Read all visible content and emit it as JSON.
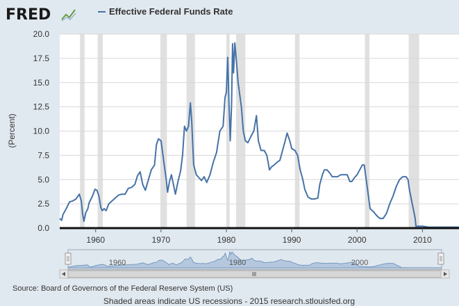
{
  "header": {
    "logo": "FRED",
    "logo_icon": "line-chart-icon"
  },
  "legend": {
    "label": "Effective Federal Funds Rate",
    "color": "#4572a7"
  },
  "navigator": {
    "labels": [
      "1960",
      "1980",
      "2000"
    ],
    "scroll_icon": "scroll-grip-icon",
    "handle_icon": "drag-handle-icon"
  },
  "footer": {
    "source": "Source: Board of Governors of the Federal Reserve System (US)",
    "note": "Shaded areas indicate US recessions - 2015 research.stlouisfed.org"
  },
  "colors": {
    "background": "#e1e9f0",
    "plot_background": "#ffffff",
    "recession": "#e0e0e0",
    "grid": "#d8d8d8",
    "line": "#4572a7"
  },
  "chart_data": {
    "type": "line",
    "title": "Effective Federal Funds Rate",
    "xlabel": "",
    "ylabel": "(Percent)",
    "xlim": [
      1954.5,
      2015.6
    ],
    "ylim": [
      0,
      20
    ],
    "yticks": [
      "0.0",
      "2.5",
      "5.0",
      "7.5",
      "10.0",
      "12.5",
      "15.0",
      "17.5",
      "20.0"
    ],
    "ytick_values": [
      0,
      2.5,
      5,
      7.5,
      10,
      12.5,
      15,
      17.5,
      20
    ],
    "xticks": [
      "1960",
      "1970",
      "1980",
      "1990",
      "2000",
      "2010"
    ],
    "xtick_values": [
      1960,
      1970,
      1980,
      1990,
      2000,
      2010
    ],
    "grid": true,
    "recessions": [
      [
        1957.6,
        1958.3
      ],
      [
        1960.3,
        1961.1
      ],
      [
        1969.9,
        1970.9
      ],
      [
        1973.9,
        1975.2
      ],
      [
        1980.0,
        1980.5
      ],
      [
        1981.5,
        1982.9
      ],
      [
        1990.5,
        1991.2
      ],
      [
        2001.2,
        2001.9
      ],
      [
        2007.9,
        2009.5
      ]
    ],
    "series": [
      {
        "name": "Effective Federal Funds Rate",
        "x": [
          1954.5,
          1954.8,
          1955.0,
          1955.5,
          1956.0,
          1956.5,
          1957.0,
          1957.5,
          1957.8,
          1958.0,
          1958.2,
          1958.5,
          1958.8,
          1959.0,
          1959.5,
          1959.9,
          1960.2,
          1960.5,
          1960.8,
          1961.0,
          1961.3,
          1961.6,
          1962.0,
          1962.5,
          1963.0,
          1963.5,
          1964.0,
          1964.5,
          1965.0,
          1965.5,
          1966.0,
          1966.4,
          1966.8,
          1967.2,
          1967.6,
          1968.0,
          1968.5,
          1969.0,
          1969.3,
          1969.6,
          1970.0,
          1970.4,
          1970.8,
          1971.0,
          1971.3,
          1971.6,
          1971.9,
          1972.2,
          1972.6,
          1973.0,
          1973.3,
          1973.6,
          1973.9,
          1974.2,
          1974.5,
          1974.7,
          1975.0,
          1975.4,
          1975.8,
          1976.2,
          1976.6,
          1977.0,
          1977.5,
          1978.0,
          1978.5,
          1979.0,
          1979.5,
          1979.8,
          1980.0,
          1980.2,
          1980.4,
          1980.6,
          1980.8,
          1980.95,
          1981.1,
          1981.3,
          1981.5,
          1981.8,
          1982.0,
          1982.3,
          1982.6,
          1982.9,
          1983.3,
          1983.8,
          1984.2,
          1984.6,
          1984.9,
          1985.3,
          1985.8,
          1986.2,
          1986.6,
          1986.9,
          1987.3,
          1987.8,
          1988.2,
          1988.6,
          1989.0,
          1989.3,
          1989.7,
          1990.0,
          1990.5,
          1990.9,
          1991.3,
          1991.7,
          1992.0,
          1992.5,
          1993.0,
          1993.5,
          1994.0,
          1994.3,
          1994.7,
          1995.0,
          1995.4,
          1995.8,
          1996.2,
          1996.6,
          1997.0,
          1997.5,
          1998.0,
          1998.5,
          1998.9,
          1999.2,
          1999.6,
          2000.0,
          2000.4,
          2000.8,
          2001.1,
          2001.4,
          2001.7,
          2002.0,
          2002.5,
          2003.0,
          2003.5,
          2004.0,
          2004.5,
          2005.0,
          2005.5,
          2006.0,
          2006.5,
          2007.0,
          2007.5,
          2007.8,
          2008.0,
          2008.3,
          2008.6,
          2008.9,
          2009.0,
          2009.5,
          2010.0,
          2011.0,
          2012.0,
          2013.0,
          2014.0,
          2015.0,
          2015.6
        ],
        "values": [
          1.0,
          0.8,
          1.4,
          2.0,
          2.7,
          2.8,
          3.0,
          3.5,
          2.8,
          1.5,
          0.7,
          1.6,
          2.0,
          2.6,
          3.3,
          4.0,
          3.9,
          3.3,
          2.1,
          1.8,
          2.0,
          1.8,
          2.5,
          2.8,
          3.1,
          3.4,
          3.5,
          3.5,
          4.1,
          4.2,
          4.5,
          5.4,
          5.8,
          4.5,
          3.9,
          4.8,
          6.0,
          6.5,
          8.6,
          9.2,
          9.0,
          7.0,
          5.0,
          3.7,
          4.8,
          5.5,
          4.5,
          3.5,
          4.8,
          5.9,
          7.5,
          10.5,
          10.0,
          10.5,
          12.9,
          11.0,
          6.5,
          5.5,
          5.2,
          4.9,
          5.3,
          4.7,
          5.5,
          6.8,
          7.8,
          10.0,
          10.5,
          13.5,
          14.0,
          17.6,
          13.0,
          9.0,
          12.8,
          19.0,
          16.0,
          19.1,
          17.5,
          15.0,
          14.0,
          12.5,
          10.0,
          9.0,
          8.8,
          9.5,
          10.0,
          11.6,
          9.0,
          8.0,
          8.0,
          7.5,
          6.0,
          6.3,
          6.5,
          6.8,
          7.0,
          8.0,
          9.0,
          9.8,
          9.0,
          8.2,
          8.0,
          7.5,
          6.0,
          5.0,
          4.0,
          3.2,
          3.0,
          3.0,
          3.1,
          4.5,
          5.5,
          6.0,
          6.0,
          5.7,
          5.3,
          5.3,
          5.3,
          5.5,
          5.5,
          5.5,
          4.8,
          4.8,
          5.2,
          5.5,
          6.0,
          6.5,
          6.5,
          5.0,
          3.5,
          2.0,
          1.7,
          1.3,
          1.0,
          1.0,
          1.5,
          2.5,
          3.3,
          4.3,
          5.0,
          5.3,
          5.3,
          5.0,
          4.0,
          3.0,
          2.0,
          1.0,
          0.2,
          0.2,
          0.2,
          0.1,
          0.1,
          0.1,
          0.1,
          0.1,
          0.1
        ]
      }
    ]
  }
}
